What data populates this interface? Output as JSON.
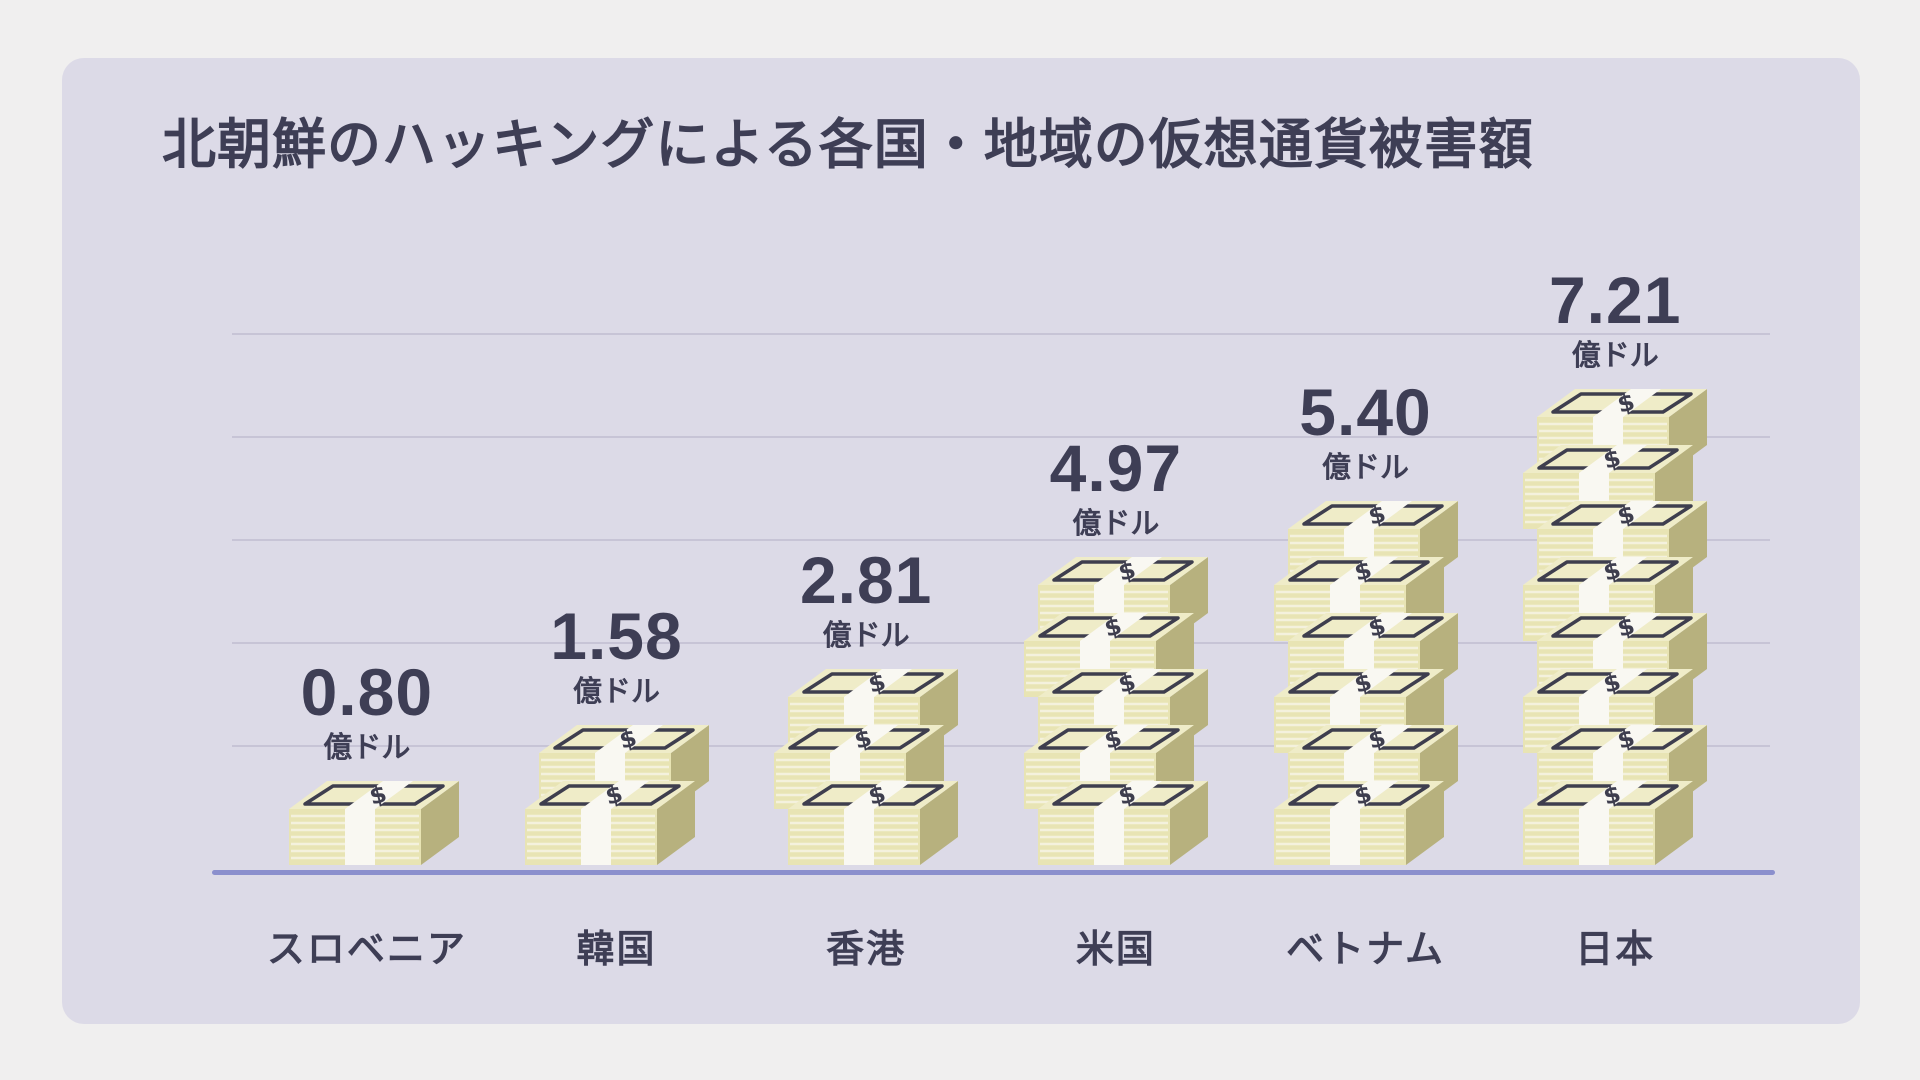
{
  "title": "北朝鮮のハッキングによる各国・地域の仮想通貨被害額",
  "chart_data": {
    "type": "bar",
    "title": "北朝鮮のハッキングによる各国・地域の仮想通貨被害額",
    "categories": [
      "スロベニア",
      "韓国",
      "香港",
      "米国",
      "ベトナム",
      "日本"
    ],
    "values": [
      0.8,
      1.58,
      2.81,
      4.97,
      5.4,
      7.21
    ],
    "value_labels": [
      "0.80",
      "1.58",
      "2.81",
      "4.97",
      "5.40",
      "7.21"
    ],
    "unit": "億ドル",
    "stack_counts": [
      1,
      2,
      3,
      5,
      6,
      8
    ],
    "icon": "money-stack",
    "xlabel": "",
    "ylabel": "",
    "legend": false,
    "grid": true,
    "baseline": 0
  },
  "colors": {
    "page_background": "#f0efef",
    "card_background": "#dcdae7",
    "text": "#3e3e55",
    "gridline": "#c7c4d6",
    "axis_line": "#8b8fcd",
    "bill_front": "#e8e4b4",
    "bill_top": "#efecc8",
    "bill_side": "#b7b17e",
    "band": "#f9f8f2"
  }
}
